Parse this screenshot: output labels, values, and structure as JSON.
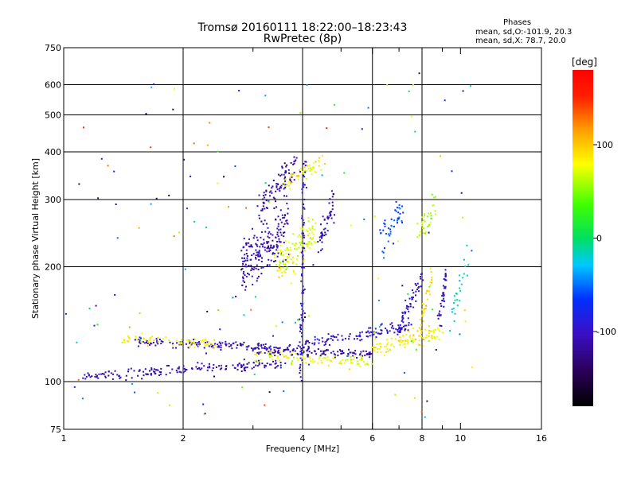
{
  "header": {
    "title_line1": "Tromsø 20160111 18:22:00–18:23:43",
    "title_line2": "RwPretec (8p)"
  },
  "stats": {
    "title": "Phases",
    "o_mode": "mean, sd,O:-101.9, 20.3",
    "x_mode": "mean, sd,X:  78.7, 20.0"
  },
  "colorbar": {
    "unit": "[deg]",
    "ticks": [
      {
        "value": 100,
        "label": "100"
      },
      {
        "value": 0,
        "label": "0"
      },
      {
        "value": -100,
        "label": "-100"
      }
    ],
    "range": [
      -180,
      180
    ]
  },
  "chart_data": {
    "type": "scatter",
    "xlabel": "Frequency [MHz]",
    "ylabel": "Stationary phase Virtual Height [km]",
    "x_scale": "log",
    "y_scale": "log",
    "xlim": [
      1,
      16
    ],
    "ylim": [
      75,
      750
    ],
    "x_ticks": [
      {
        "value": 1,
        "label": "1"
      },
      {
        "value": 2,
        "label": "2"
      },
      {
        "value": 4,
        "label": "4"
      },
      {
        "value": 6,
        "label": "6"
      },
      {
        "value": 8,
        "label": "8"
      },
      {
        "value": 10,
        "label": "10"
      },
      {
        "value": 16,
        "label": "16"
      }
    ],
    "x_minor_ticks": [
      3,
      5,
      7,
      9
    ],
    "x_grid": [
      2,
      4,
      6,
      8
    ],
    "y_ticks": [
      {
        "value": 75,
        "label": "75"
      },
      {
        "value": 100,
        "label": "100"
      },
      {
        "value": 200,
        "label": "200"
      },
      {
        "value": 300,
        "label": "300"
      },
      {
        "value": 400,
        "label": "400"
      },
      {
        "value": 500,
        "label": "500"
      },
      {
        "value": 600,
        "label": "600"
      },
      {
        "value": 750,
        "label": "750"
      }
    ],
    "y_grid": [
      100,
      200,
      300,
      400,
      500,
      600
    ],
    "grid": true,
    "color_variable": "phase [deg]",
    "traces": [
      {
        "name": "O-mode low trace",
        "x_start": 1.12,
        "x_end": 3.6,
        "h_start": 103,
        "h_end": 112,
        "phase": -110,
        "n": 170,
        "jitter": 0.03
      },
      {
        "name": "O-mode F trace",
        "x_start": 1.5,
        "x_end": 4.2,
        "h_start": 127,
        "h_end": 122,
        "phase": -105,
        "n": 150,
        "jitter": 0.025
      },
      {
        "name": "O-mode mid trace",
        "x_start": 3.0,
        "x_end": 6.0,
        "h_start": 120,
        "h_end": 118,
        "phase": -115,
        "n": 110,
        "jitter": 0.025
      },
      {
        "name": "O-mode upper trace",
        "x_start": 4.0,
        "x_end": 7.5,
        "h_start": 125,
        "h_end": 140,
        "phase": -100,
        "n": 110,
        "jitter": 0.035
      },
      {
        "name": "O-mode cusp",
        "x_start": 7.0,
        "x_end": 8.0,
        "h_start": 135,
        "h_end": 195,
        "phase": -100,
        "n": 60,
        "jitter": 0.06
      },
      {
        "name": "O-mode cusp 2",
        "x_start": 8.8,
        "x_end": 9.2,
        "h_start": 140,
        "h_end": 190,
        "phase": -105,
        "n": 40,
        "jitter": 0.07
      },
      {
        "name": "X-mode low trace",
        "x_start": 1.4,
        "x_end": 2.4,
        "h_start": 130,
        "h_end": 125,
        "phase": 80,
        "n": 70,
        "jitter": 0.03
      },
      {
        "name": "X-mode trace",
        "x_start": 3.0,
        "x_end": 6.0,
        "h_start": 118,
        "h_end": 112,
        "phase": 75,
        "n": 90,
        "jitter": 0.035
      },
      {
        "name": "X-mode upper",
        "x_start": 6.0,
        "x_end": 9.0,
        "h_start": 122,
        "h_end": 135,
        "phase": 85,
        "n": 100,
        "jitter": 0.05
      },
      {
        "name": "X-mode cusp",
        "x_start": 7.8,
        "x_end": 8.5,
        "h_start": 130,
        "h_end": 190,
        "phase": 90,
        "n": 40,
        "jitter": 0.08
      },
      {
        "name": "F-region O cloud",
        "x_start": 2.8,
        "x_end": 3.7,
        "h_start": 195,
        "h_end": 260,
        "phase": -110,
        "n": 200,
        "jitter": 0.15
      },
      {
        "name": "F-region O cloud high",
        "x_start": 3.1,
        "x_end": 3.9,
        "h_start": 280,
        "h_end": 380,
        "phase": -115,
        "n": 90,
        "jitter": 0.1
      },
      {
        "name": "F-region X cloud",
        "x_start": 3.4,
        "x_end": 4.3,
        "h_start": 195,
        "h_end": 250,
        "phase": 70,
        "n": 120,
        "jitter": 0.12
      },
      {
        "name": "F-region X high",
        "x_start": 3.6,
        "x_end": 4.6,
        "h_start": 330,
        "h_end": 380,
        "phase": 80,
        "n": 50,
        "jitter": 0.05
      },
      {
        "name": "vertical spread 4MHz",
        "x_start": 3.95,
        "x_end": 4.05,
        "h_start": 100,
        "h_end": 380,
        "phase": -100,
        "n": 90,
        "jitter": 0.02
      },
      {
        "name": "scatter 4.6MHz",
        "x_start": 4.4,
        "x_end": 4.8,
        "h_start": 230,
        "h_end": 300,
        "phase": -110,
        "n": 50,
        "jitter": 0.08
      },
      {
        "name": "scatter 6-7MHz",
        "x_start": 6.2,
        "x_end": 7.2,
        "h_start": 230,
        "h_end": 280,
        "phase": -60,
        "n": 45,
        "jitter": 0.1
      },
      {
        "name": "scatter 8MHz high",
        "x_start": 7.8,
        "x_end": 8.6,
        "h_start": 240,
        "h_end": 290,
        "phase": 60,
        "n": 35,
        "jitter": 0.08
      },
      {
        "name": "scatter 10MHz",
        "x_start": 9.3,
        "x_end": 10.5,
        "h_start": 140,
        "h_end": 215,
        "phase": -20,
        "n": 25,
        "jitter": 0.1
      },
      {
        "name": "background noise",
        "x_start": 1.0,
        "x_end": 11.0,
        "h_start": 78,
        "h_end": 650,
        "phase": 0,
        "n": 140,
        "jitter": 1.0
      }
    ]
  }
}
